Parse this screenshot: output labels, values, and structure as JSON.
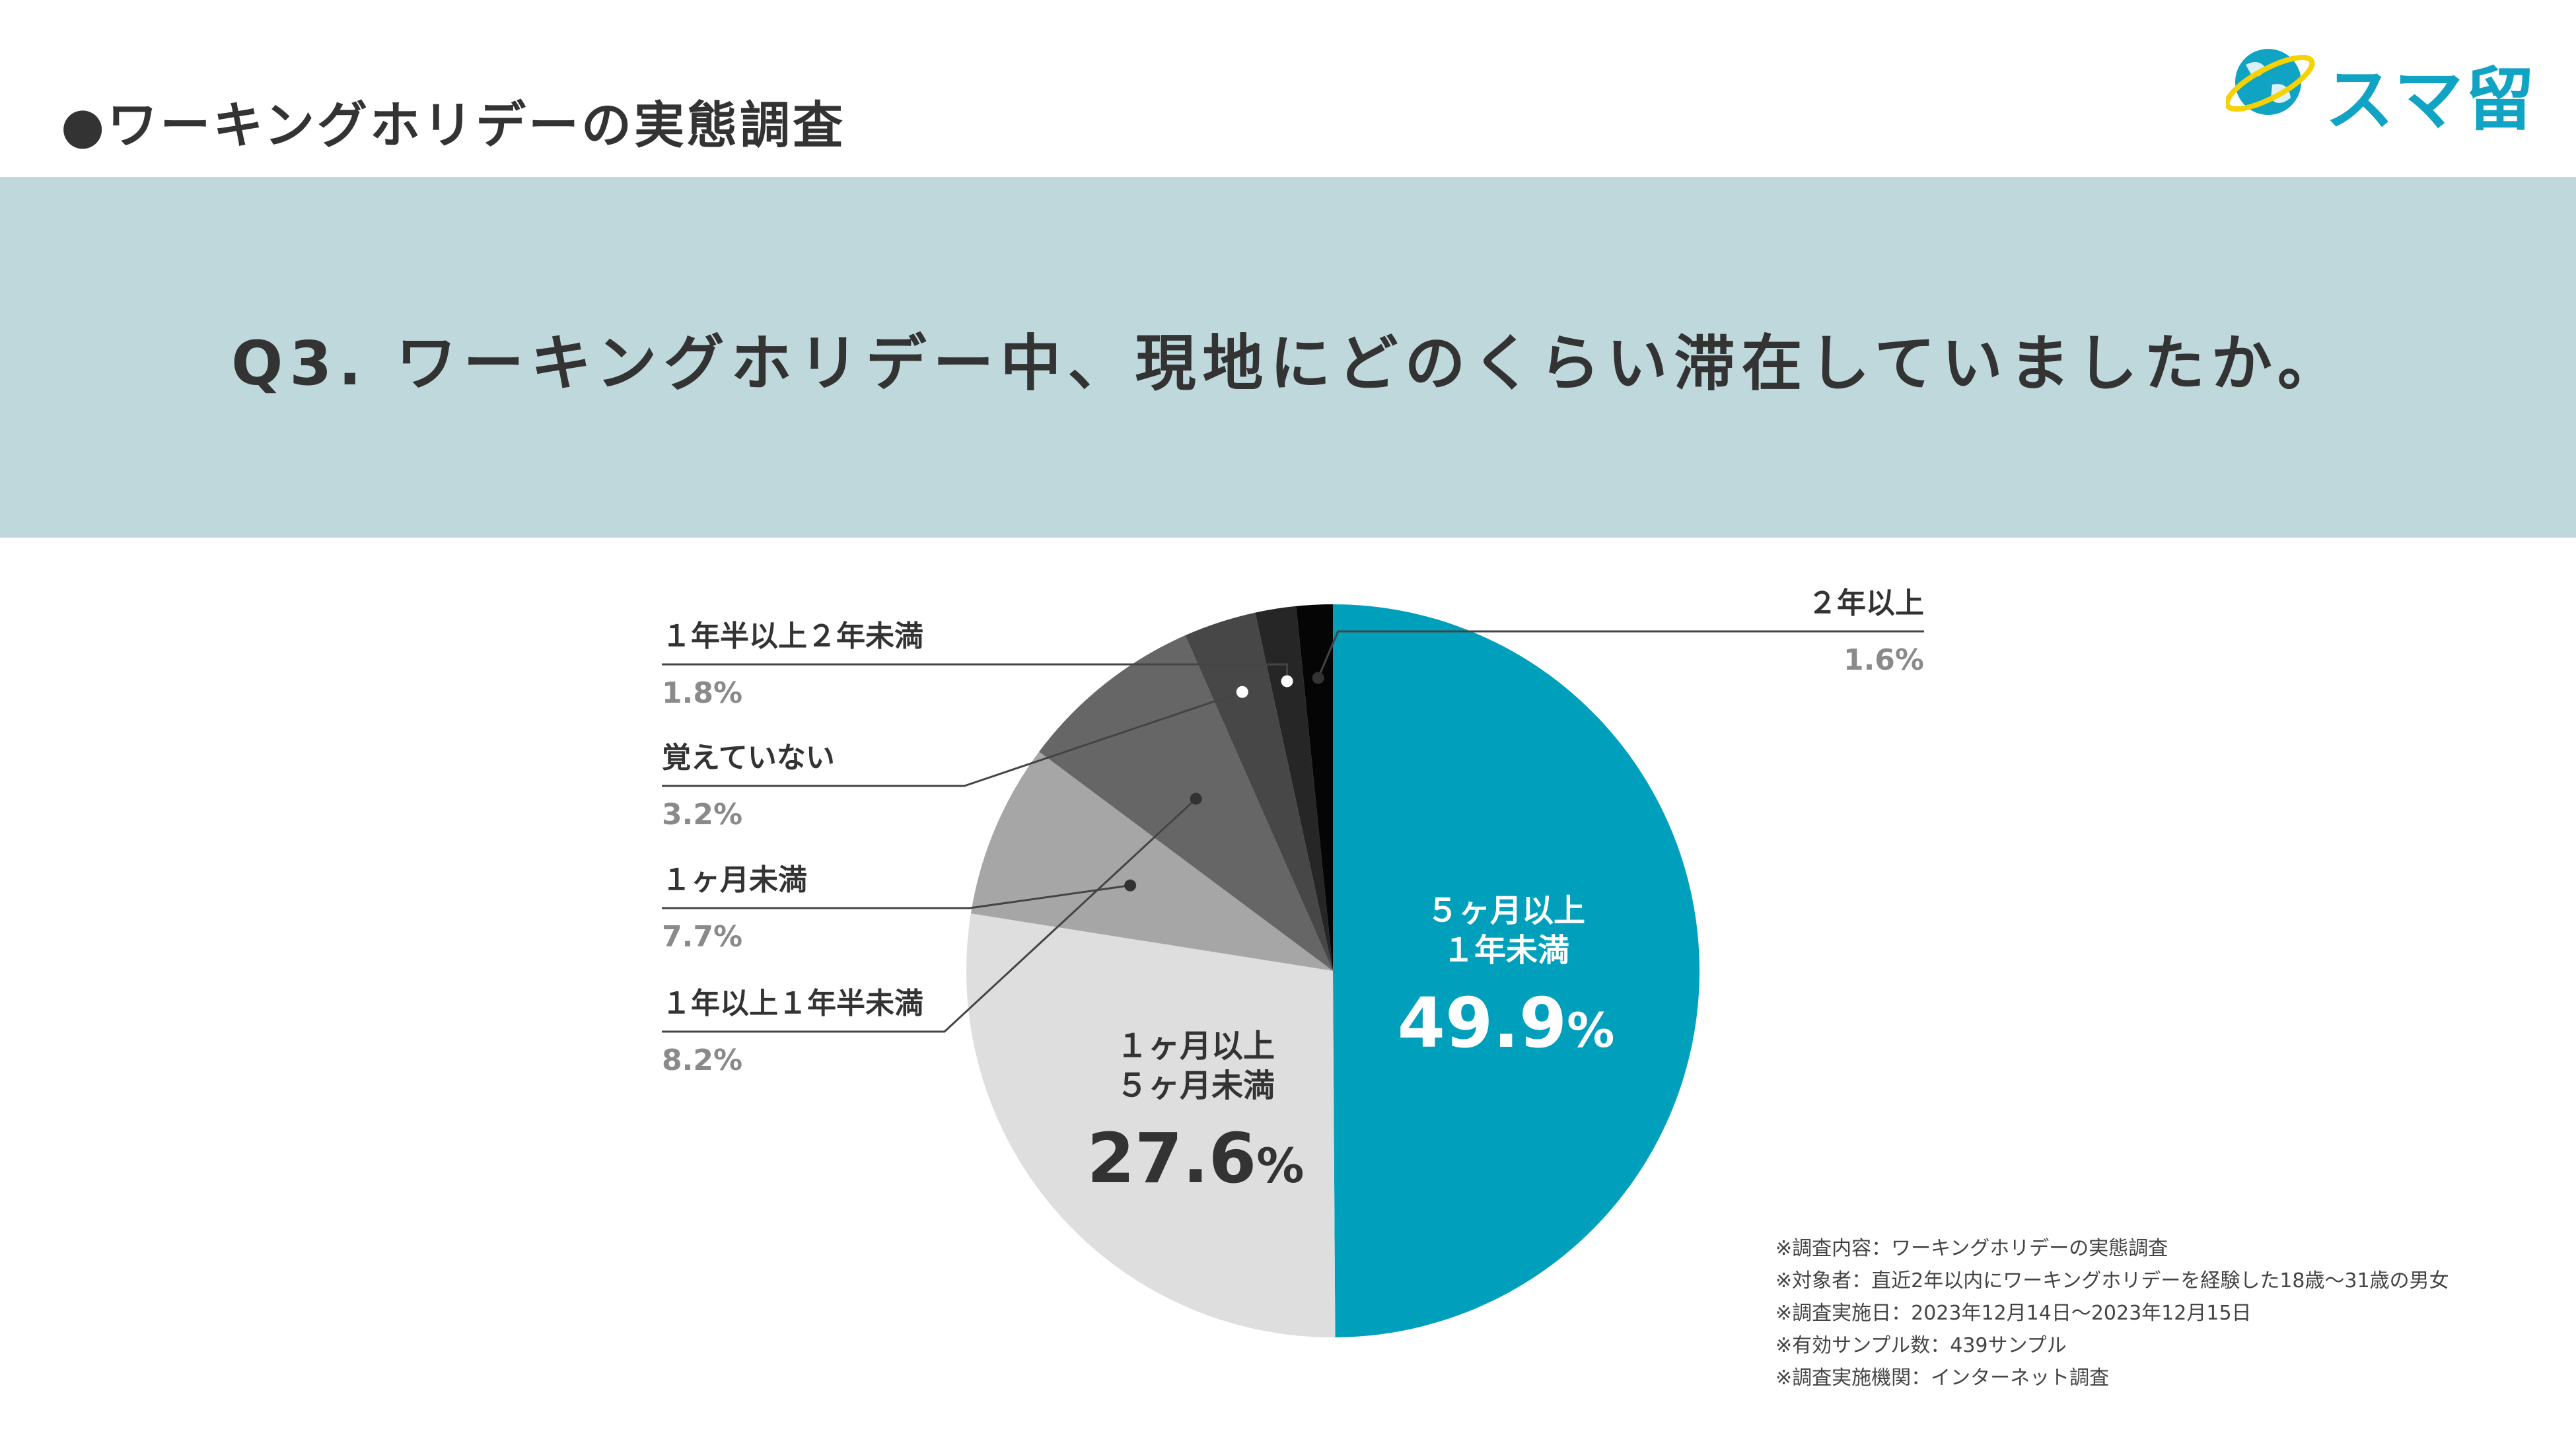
{
  "header": {
    "title": "●ワーキングホリデーの実態調査"
  },
  "logo": {
    "text": "スマ留",
    "icon": "globe-icon"
  },
  "question": {
    "text": "Q3. ワーキングホリデー中、現地にどのくらい滞在していましたか。"
  },
  "chart_data": {
    "type": "pie",
    "unit": "%",
    "slices": [
      {
        "label": "５ヶ月以上１年未満",
        "label_lines": [
          "５ヶ月以上",
          "１年未満"
        ],
        "value": 49.9,
        "value_text": "49.9",
        "color": "#00a0bd",
        "label_color": "#ffffff"
      },
      {
        "label": "１ヶ月以上５ヶ月未満",
        "label_lines": [
          "１ヶ月以上",
          "５ヶ月未満"
        ],
        "value": 27.6,
        "value_text": "27.6",
        "color": "#dedede",
        "label_color": "#333333"
      },
      {
        "label": "１ヶ月未満",
        "value": 7.7,
        "value_text": "7.7%",
        "color": "#a6a6a6"
      },
      {
        "label": "１年以上１年半未満",
        "value": 8.2,
        "value_text": "8.2%",
        "color": "#666666"
      },
      {
        "label": "覚えていない",
        "value": 3.2,
        "value_text": "3.2%",
        "color": "#474747"
      },
      {
        "label": "１年半以上２年未満",
        "value": 1.8,
        "value_text": "1.8%",
        "color": "#262626"
      },
      {
        "label": "２年以上",
        "value": 1.6,
        "value_text": "1.6%",
        "color": "#050505"
      }
    ]
  },
  "notes": [
    "※調査内容：ワーキングホリデーの実態調査",
    "※対象者：直近2年以内にワーキングホリデーを経験した18歳〜31歳の男女",
    "※調査実施日：2023年12月14日〜2023年12月15日",
    "※有効サンプル数：439サンプル",
    "※調査実施機関：インターネット調査"
  ]
}
